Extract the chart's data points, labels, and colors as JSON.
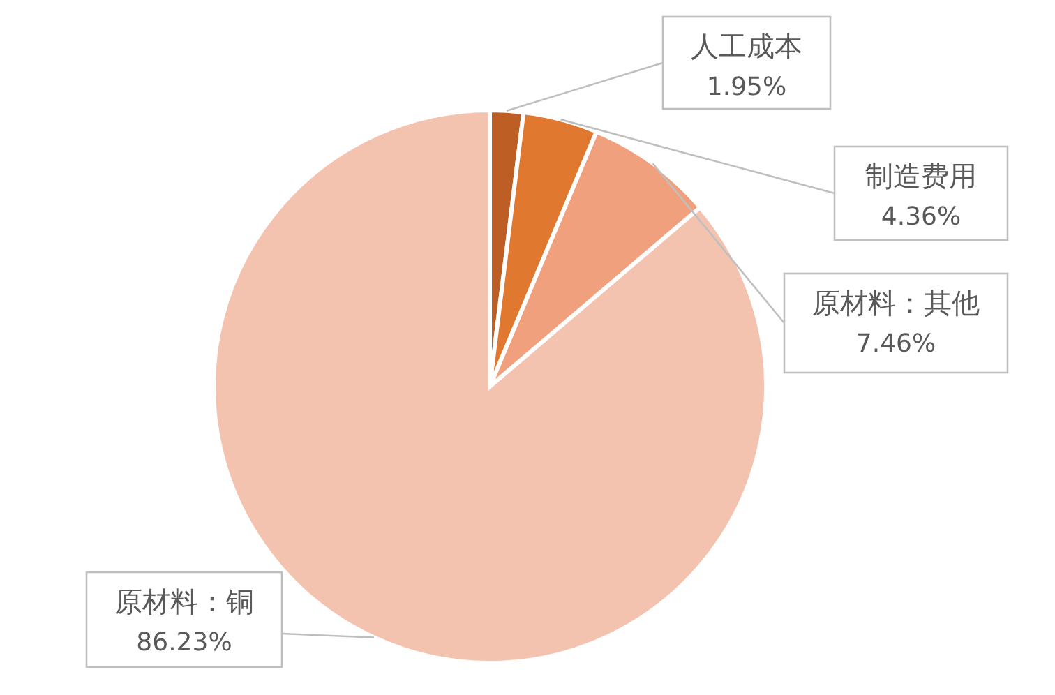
{
  "chart_data": {
    "type": "pie",
    "categories": [
      "人工成本",
      "制造费用",
      "原材料：其他",
      "原材料：铜"
    ],
    "values": [
      1.95,
      4.36,
      7.46,
      86.23
    ],
    "value_labels": [
      "1.95%",
      "4.36%",
      "7.46%",
      "86.23%"
    ],
    "colors": [
      "#bd5f24",
      "#e07830",
      "#f0a07c",
      "#f4c3b0"
    ]
  }
}
